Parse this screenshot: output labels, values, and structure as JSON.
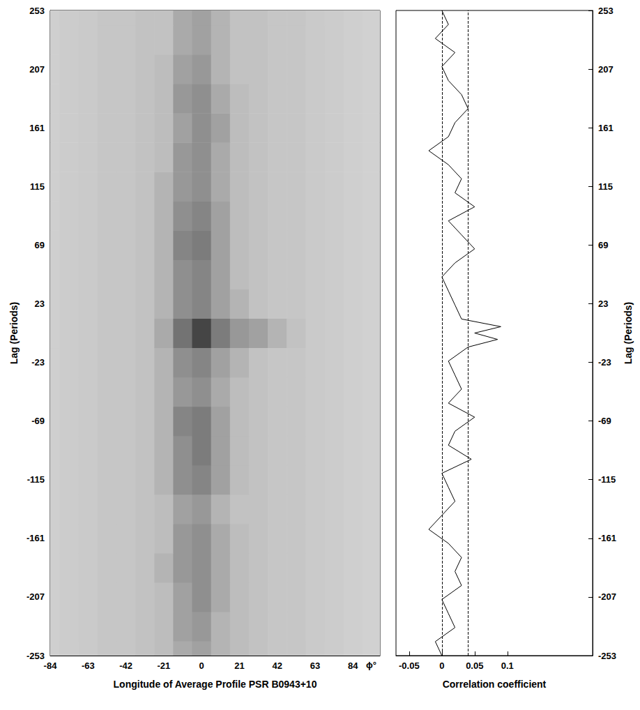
{
  "chart_data": [
    {
      "type": "heatmap",
      "xlabel": "Longitude of Average Profile PSR B0943+10",
      "x_unit": "ϕ°",
      "ylabel": "Lag (Periods)",
      "x": [
        -84,
        -73.5,
        -63,
        -52.5,
        -42,
        -31.5,
        -21,
        -10.5,
        0,
        10.5,
        21,
        31.5,
        42,
        52.5,
        63,
        73.5,
        84,
        94.5
      ],
      "y": [
        -253,
        -230,
        -207,
        -184,
        -161,
        -138,
        -115,
        -92,
        -69,
        -46,
        -23,
        0,
        23,
        46,
        69,
        92,
        115,
        138,
        161,
        184,
        207,
        230,
        253
      ],
      "cells": [
        [
          0.15,
          0.17,
          0.18,
          0.2,
          0.2,
          0.22,
          0.25,
          0.35,
          0.4,
          0.3,
          0.25,
          0.22,
          0.2,
          0.2,
          0.18,
          0.17,
          0.15,
          0.14
        ],
        [
          0.15,
          0.17,
          0.18,
          0.2,
          0.2,
          0.22,
          0.25,
          0.4,
          0.45,
          0.3,
          0.25,
          0.22,
          0.2,
          0.2,
          0.18,
          0.17,
          0.15,
          0.14
        ],
        [
          0.15,
          0.17,
          0.18,
          0.2,
          0.2,
          0.22,
          0.25,
          0.4,
          0.5,
          0.35,
          0.25,
          0.22,
          0.2,
          0.2,
          0.18,
          0.17,
          0.15,
          0.14
        ],
        [
          0.15,
          0.17,
          0.18,
          0.2,
          0.2,
          0.22,
          0.3,
          0.45,
          0.5,
          0.35,
          0.25,
          0.22,
          0.2,
          0.2,
          0.18,
          0.17,
          0.15,
          0.14
        ],
        [
          0.15,
          0.17,
          0.18,
          0.2,
          0.2,
          0.22,
          0.25,
          0.45,
          0.5,
          0.35,
          0.25,
          0.22,
          0.2,
          0.2,
          0.18,
          0.17,
          0.15,
          0.14
        ],
        [
          0.15,
          0.17,
          0.18,
          0.2,
          0.2,
          0.22,
          0.25,
          0.4,
          0.45,
          0.3,
          0.22,
          0.22,
          0.2,
          0.2,
          0.18,
          0.17,
          0.15,
          0.14
        ],
        [
          0.15,
          0.17,
          0.18,
          0.2,
          0.2,
          0.22,
          0.3,
          0.5,
          0.55,
          0.4,
          0.25,
          0.22,
          0.2,
          0.2,
          0.18,
          0.17,
          0.15,
          0.14
        ],
        [
          0.15,
          0.17,
          0.18,
          0.2,
          0.2,
          0.22,
          0.3,
          0.5,
          0.6,
          0.4,
          0.25,
          0.22,
          0.2,
          0.2,
          0.18,
          0.17,
          0.15,
          0.14
        ],
        [
          0.15,
          0.17,
          0.18,
          0.2,
          0.2,
          0.22,
          0.3,
          0.55,
          0.6,
          0.4,
          0.25,
          0.22,
          0.2,
          0.2,
          0.18,
          0.17,
          0.15,
          0.14
        ],
        [
          0.15,
          0.17,
          0.18,
          0.2,
          0.2,
          0.22,
          0.3,
          0.45,
          0.5,
          0.35,
          0.25,
          0.22,
          0.2,
          0.2,
          0.18,
          0.17,
          0.15,
          0.14
        ],
        [
          0.15,
          0.17,
          0.18,
          0.2,
          0.2,
          0.22,
          0.3,
          0.5,
          0.55,
          0.4,
          0.3,
          0.22,
          0.2,
          0.2,
          0.18,
          0.17,
          0.15,
          0.14
        ],
        [
          0.15,
          0.17,
          0.18,
          0.2,
          0.2,
          0.22,
          0.35,
          0.65,
          0.9,
          0.6,
          0.45,
          0.4,
          0.3,
          0.22,
          0.18,
          0.17,
          0.15,
          0.14
        ],
        [
          0.15,
          0.17,
          0.18,
          0.2,
          0.2,
          0.22,
          0.3,
          0.5,
          0.55,
          0.4,
          0.3,
          0.22,
          0.2,
          0.2,
          0.18,
          0.17,
          0.15,
          0.14
        ],
        [
          0.15,
          0.17,
          0.18,
          0.2,
          0.2,
          0.22,
          0.3,
          0.5,
          0.55,
          0.4,
          0.25,
          0.22,
          0.2,
          0.2,
          0.18,
          0.17,
          0.15,
          0.14
        ],
        [
          0.15,
          0.17,
          0.18,
          0.2,
          0.2,
          0.22,
          0.3,
          0.55,
          0.6,
          0.4,
          0.25,
          0.22,
          0.2,
          0.2,
          0.18,
          0.17,
          0.15,
          0.14
        ],
        [
          0.15,
          0.17,
          0.18,
          0.2,
          0.2,
          0.22,
          0.3,
          0.5,
          0.55,
          0.4,
          0.25,
          0.22,
          0.2,
          0.2,
          0.18,
          0.17,
          0.15,
          0.14
        ],
        [
          0.15,
          0.17,
          0.18,
          0.2,
          0.2,
          0.22,
          0.3,
          0.45,
          0.5,
          0.35,
          0.25,
          0.22,
          0.2,
          0.2,
          0.18,
          0.17,
          0.15,
          0.14
        ],
        [
          0.15,
          0.17,
          0.18,
          0.2,
          0.2,
          0.22,
          0.25,
          0.45,
          0.5,
          0.35,
          0.25,
          0.22,
          0.2,
          0.2,
          0.18,
          0.17,
          0.15,
          0.14
        ],
        [
          0.15,
          0.17,
          0.18,
          0.2,
          0.2,
          0.22,
          0.25,
          0.4,
          0.5,
          0.4,
          0.25,
          0.22,
          0.2,
          0.2,
          0.18,
          0.17,
          0.15,
          0.14
        ],
        [
          0.15,
          0.17,
          0.18,
          0.2,
          0.2,
          0.22,
          0.25,
          0.45,
          0.5,
          0.35,
          0.25,
          0.22,
          0.2,
          0.2,
          0.18,
          0.17,
          0.15,
          0.14
        ],
        [
          0.15,
          0.17,
          0.18,
          0.2,
          0.2,
          0.22,
          0.25,
          0.4,
          0.45,
          0.3,
          0.22,
          0.22,
          0.2,
          0.2,
          0.18,
          0.17,
          0.15,
          0.14
        ],
        [
          0.15,
          0.17,
          0.18,
          0.2,
          0.2,
          0.22,
          0.22,
          0.35,
          0.4,
          0.3,
          0.22,
          0.22,
          0.2,
          0.2,
          0.18,
          0.17,
          0.15,
          0.14
        ],
        [
          0.15,
          0.17,
          0.18,
          0.2,
          0.2,
          0.22,
          0.22,
          0.35,
          0.4,
          0.3,
          0.22,
          0.22,
          0.2,
          0.2,
          0.18,
          0.17,
          0.15,
          0.14
        ]
      ],
      "xlim": [
        -84,
        99
      ],
      "xticks": [
        -84,
        -63,
        -42,
        -21,
        0,
        21,
        42,
        63,
        84
      ],
      "ylim": [
        -253,
        253
      ],
      "yticks": [
        -253,
        -207,
        -161,
        -115,
        -69,
        -23,
        23,
        69,
        115,
        161,
        207,
        253
      ]
    },
    {
      "type": "line",
      "xlabel": "Correlation coefficient",
      "ylabel": "Lag (Periods)",
      "color": "#000000",
      "y": [
        -253,
        -242,
        -231,
        -220,
        -209,
        -198,
        -187,
        -176,
        -165,
        -154,
        -143,
        -132,
        -121,
        -110,
        -99,
        -88,
        -77,
        -66,
        -55,
        -44,
        -33,
        -22,
        -11,
        -5,
        0,
        5,
        11,
        22,
        33,
        44,
        55,
        66,
        77,
        88,
        99,
        110,
        121,
        132,
        143,
        154,
        165,
        176,
        187,
        198,
        209,
        220,
        231,
        242,
        253
      ],
      "x": [
        0.0,
        -0.01,
        0.02,
        0.01,
        0.0,
        0.03,
        0.02,
        0.03,
        0.01,
        -0.02,
        0.0,
        0.02,
        0.01,
        0.0,
        0.045,
        0.01,
        0.02,
        0.05,
        0.01,
        0.03,
        0.02,
        0.01,
        0.04,
        0.085,
        0.05,
        0.09,
        0.03,
        0.02,
        0.01,
        0.0,
        0.02,
        0.05,
        0.03,
        0.01,
        0.05,
        0.02,
        0.03,
        0.01,
        -0.02,
        0.01,
        0.02,
        0.04,
        0.03,
        0.01,
        0.0,
        0.02,
        -0.01,
        0.01,
        0.0
      ],
      "reference_lines": [
        0,
        0.042
      ],
      "xlim": [
        -0.07,
        0.23
      ],
      "xticks": [
        -0.05,
        0,
        0.05,
        0.1
      ],
      "ylim": [
        -253,
        253
      ],
      "yticks": [
        -253,
        -207,
        -161,
        -115,
        -69,
        -23,
        23,
        69,
        115,
        161,
        207,
        253
      ]
    }
  ]
}
